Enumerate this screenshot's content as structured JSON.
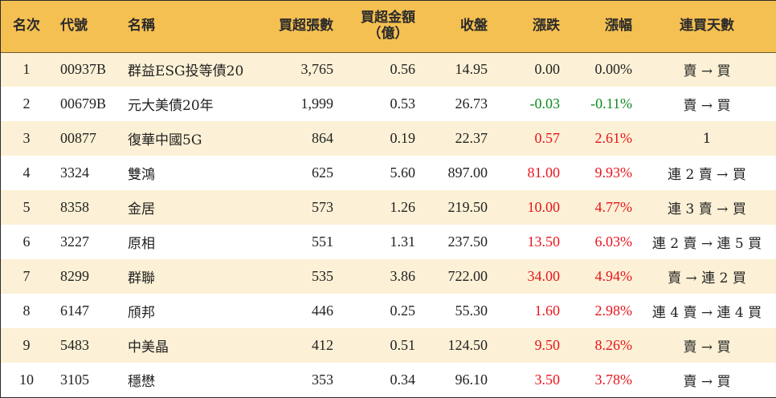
{
  "headers": {
    "rank": "名次",
    "code": "代號",
    "name": "名稱",
    "net_buy_lots": "買超張數",
    "net_buy_amount_line1": "買超金額",
    "net_buy_amount_line2": "（億）",
    "close": "收盤",
    "change": "漲跌",
    "change_pct": "漲幅",
    "consecutive_days": "連買天數"
  },
  "colors": {
    "header_bg": "#f5c052",
    "row_odd_bg": "#fcf1d6",
    "row_even_bg": "#ffffff",
    "up": "#e8141c",
    "down": "#0f8a1f",
    "flat": "#222222"
  },
  "rows": [
    {
      "rank": "1",
      "code": "00937B",
      "name": "群益ESG投等債20",
      "lots": "3,765",
      "amount": "0.56",
      "close": "14.95",
      "change": "0.00",
      "pct": "0.00%",
      "trend": "flat",
      "days": "賣 → 買"
    },
    {
      "rank": "2",
      "code": "00679B",
      "name": "元大美債20年",
      "lots": "1,999",
      "amount": "0.53",
      "close": "26.73",
      "change": "-0.03",
      "pct": "-0.11%",
      "trend": "down",
      "days": "賣 → 買"
    },
    {
      "rank": "3",
      "code": "00877",
      "name": "復華中國5G",
      "lots": "864",
      "amount": "0.19",
      "close": "22.37",
      "change": "0.57",
      "pct": "2.61%",
      "trend": "up",
      "days": "1"
    },
    {
      "rank": "4",
      "code": "3324",
      "name": "雙鴻",
      "lots": "625",
      "amount": "5.60",
      "close": "897.00",
      "change": "81.00",
      "pct": "9.93%",
      "trend": "up",
      "days": "連 2 賣 → 買"
    },
    {
      "rank": "5",
      "code": "8358",
      "name": "金居",
      "lots": "573",
      "amount": "1.26",
      "close": "219.50",
      "change": "10.00",
      "pct": "4.77%",
      "trend": "up",
      "days": "連 3 賣 → 買"
    },
    {
      "rank": "6",
      "code": "3227",
      "name": "原相",
      "lots": "551",
      "amount": "1.31",
      "close": "237.50",
      "change": "13.50",
      "pct": "6.03%",
      "trend": "up",
      "days": "連 2 賣 → 連 5 買"
    },
    {
      "rank": "7",
      "code": "8299",
      "name": "群聯",
      "lots": "535",
      "amount": "3.86",
      "close": "722.00",
      "change": "34.00",
      "pct": "4.94%",
      "trend": "up",
      "days": "賣 → 連 2 買"
    },
    {
      "rank": "8",
      "code": "6147",
      "name": "頎邦",
      "lots": "446",
      "amount": "0.25",
      "close": "55.30",
      "change": "1.60",
      "pct": "2.98%",
      "trend": "up",
      "days": "連 4 賣 → 連 4 買"
    },
    {
      "rank": "9",
      "code": "5483",
      "name": "中美晶",
      "lots": "412",
      "amount": "0.51",
      "close": "124.50",
      "change": "9.50",
      "pct": "8.26%",
      "trend": "up",
      "days": "賣 → 買"
    },
    {
      "rank": "10",
      "code": "3105",
      "name": "穩懋",
      "lots": "353",
      "amount": "0.34",
      "close": "96.10",
      "change": "3.50",
      "pct": "3.78%",
      "trend": "up",
      "days": "賣 → 買"
    }
  ]
}
